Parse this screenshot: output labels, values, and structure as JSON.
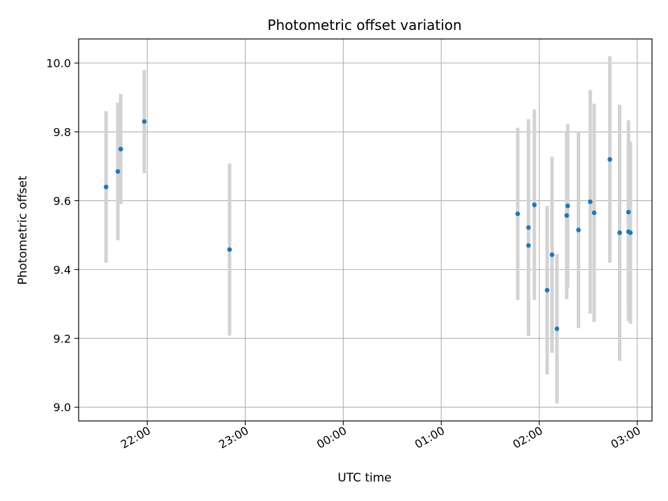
{
  "chart_data": {
    "type": "scatter",
    "title": "Photometric offset variation",
    "xlabel": "UTC time",
    "ylabel": "Photometric offset",
    "grid": true,
    "x_unit": "hours",
    "xlim": [
      21.3,
      27.15
    ],
    "ylim": [
      8.96,
      10.07
    ],
    "xticks": [
      {
        "value": 22,
        "label": "22:00"
      },
      {
        "value": 23,
        "label": "23:00"
      },
      {
        "value": 24,
        "label": "00:00"
      },
      {
        "value": 25,
        "label": "01:00"
      },
      {
        "value": 26,
        "label": "02:00"
      },
      {
        "value": 27,
        "label": "03:00"
      }
    ],
    "yticks": [
      {
        "value": 9.0,
        "label": "9.0"
      },
      {
        "value": 9.2,
        "label": "9.2"
      },
      {
        "value": 9.4,
        "label": "9.4"
      },
      {
        "value": 9.6,
        "label": "9.6"
      },
      {
        "value": 9.8,
        "label": "9.8"
      },
      {
        "value": 10.0,
        "label": "10.0"
      }
    ],
    "point_color": "#1f77b4",
    "errorbar_color": "#d3d3d3",
    "points": [
      {
        "x": 21.58,
        "y": 9.64,
        "err": 0.22
      },
      {
        "x": 21.7,
        "y": 9.685,
        "err": 0.2
      },
      {
        "x": 21.73,
        "y": 9.75,
        "err": 0.16
      },
      {
        "x": 21.97,
        "y": 9.83,
        "err": 0.15
      },
      {
        "x": 22.84,
        "y": 9.458,
        "err": 0.25
      },
      {
        "x": 25.78,
        "y": 9.562,
        "err": 0.25
      },
      {
        "x": 25.89,
        "y": 9.522,
        "err": 0.315
      },
      {
        "x": 25.89,
        "y": 9.47,
        "err": 0.25
      },
      {
        "x": 25.95,
        "y": 9.588,
        "err": 0.277
      },
      {
        "x": 26.08,
        "y": 9.34,
        "err": 0.245
      },
      {
        "x": 26.13,
        "y": 9.443,
        "err": 0.285
      },
      {
        "x": 26.18,
        "y": 9.228,
        "err": 0.217
      },
      {
        "x": 26.28,
        "y": 9.557,
        "err": 0.243
      },
      {
        "x": 26.29,
        "y": 9.585,
        "err": 0.238
      },
      {
        "x": 26.4,
        "y": 9.515,
        "err": 0.285
      },
      {
        "x": 26.52,
        "y": 9.597,
        "err": 0.325
      },
      {
        "x": 26.56,
        "y": 9.565,
        "err": 0.317
      },
      {
        "x": 26.72,
        "y": 9.72,
        "err": 0.3
      },
      {
        "x": 26.82,
        "y": 9.507,
        "err": 0.372
      },
      {
        "x": 26.91,
        "y": 9.567,
        "err": 0.267
      },
      {
        "x": 26.91,
        "y": 9.51,
        "err": 0.26
      },
      {
        "x": 26.93,
        "y": 9.507,
        "err": 0.265
      }
    ]
  }
}
